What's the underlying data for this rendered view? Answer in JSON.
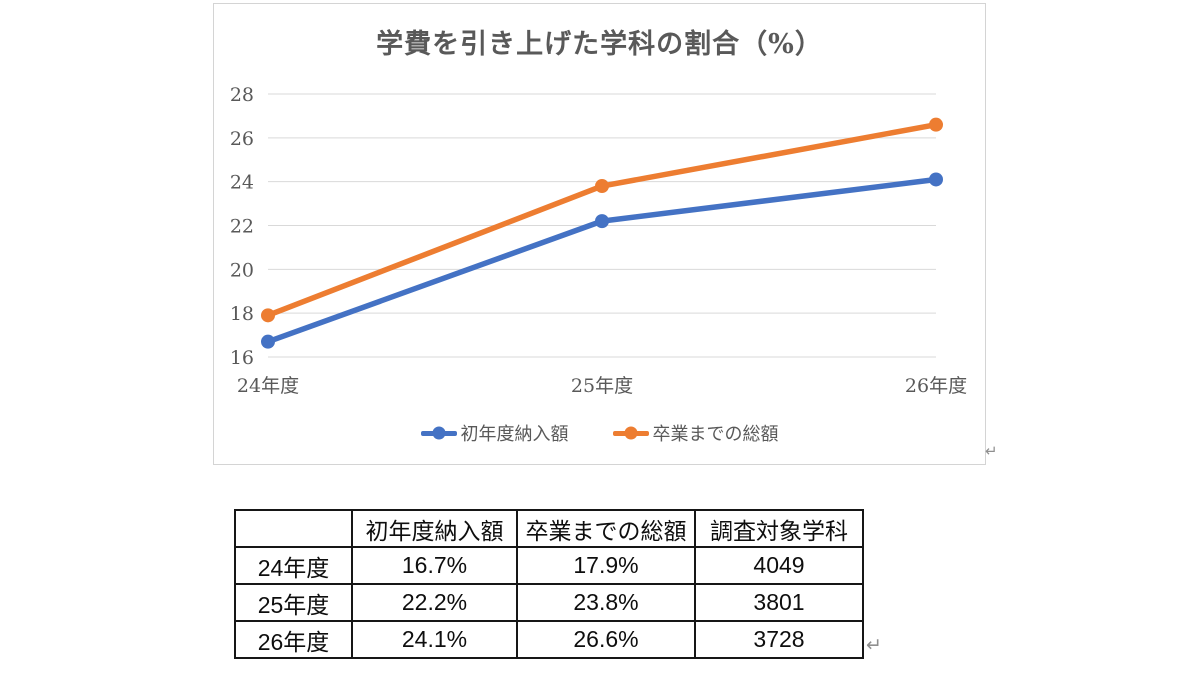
{
  "chart_data": {
    "type": "line",
    "title": "学費を引き上げた学科の割合（%）",
    "categories": [
      "24年度",
      "25年度",
      "26年度"
    ],
    "series": [
      {
        "name": "初年度納入額",
        "color": "#4472C4",
        "values": [
          16.7,
          22.2,
          24.1
        ]
      },
      {
        "name": "卒業までの総額",
        "color": "#ED7D31",
        "values": [
          17.9,
          23.8,
          26.6
        ]
      }
    ],
    "ylim": [
      16,
      28
    ],
    "yticks": [
      16,
      18,
      20,
      22,
      24,
      26,
      28
    ],
    "xlabel": "",
    "ylabel": "",
    "grid": true,
    "gridline_color": "#d9d9d9",
    "axis_text_color": "#595959",
    "legend_position": "bottom-center"
  },
  "table": {
    "headers": [
      "",
      "初年度納入額",
      "卒業までの総額",
      "調査対象学科"
    ],
    "rows": [
      [
        "24年度",
        "16.7%",
        "17.9%",
        "4049"
      ],
      [
        "25年度",
        "22.2%",
        "23.8%",
        "3801"
      ],
      [
        "26年度",
        "24.1%",
        "26.6%",
        "3728"
      ]
    ]
  },
  "marks": {
    "chart_return_mark": "↵",
    "table_return_mark": "↵"
  }
}
